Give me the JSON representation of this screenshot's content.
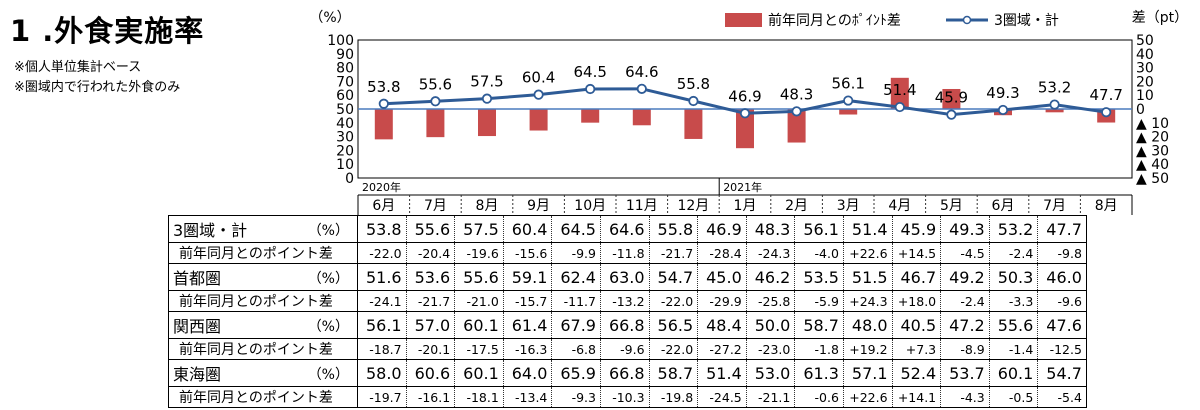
{
  "title": "1 .外食実施率",
  "notes": [
    "※個人単位集計ベース",
    "※圏域内で行われた外食のみ"
  ],
  "chart_data": {
    "type": "bar+line",
    "year_labels": [
      "2020年",
      "2021年"
    ],
    "categories": [
      "6月",
      "7月",
      "8月",
      "9月",
      "10月",
      "11月",
      "12月",
      "1月",
      "2月",
      "3月",
      "4月",
      "5月",
      "6月",
      "7月",
      "8月"
    ],
    "left_axis": {
      "unit": "（%）",
      "ylim": [
        0,
        100
      ],
      "ticks": [
        "0",
        "10",
        "20",
        "30",
        "40",
        "50",
        "60",
        "70",
        "80",
        "90",
        "100"
      ]
    },
    "right_axis": {
      "unit": "差（pt）",
      "ylim": [
        -50,
        50
      ],
      "ticks": [
        "▲ 50",
        "▲ 40",
        "▲ 30",
        "▲ 20",
        "▲ 10",
        "0",
        "10",
        "20",
        "30",
        "40",
        "50"
      ]
    },
    "series": [
      {
        "name": "前年同月とのﾎﾟｲﾝﾄ差",
        "type": "bar",
        "axis": "right",
        "values": [
          -22.0,
          -20.4,
          -19.6,
          -15.6,
          -9.9,
          -11.8,
          -21.7,
          -28.4,
          -24.3,
          -4.0,
          22.6,
          14.5,
          -4.5,
          -2.4,
          -9.8
        ]
      },
      {
        "name": "3圏域・計",
        "type": "line",
        "axis": "left",
        "values": [
          53.8,
          55.6,
          57.5,
          60.4,
          64.5,
          64.6,
          55.8,
          46.9,
          48.3,
          56.1,
          51.4,
          45.9,
          49.3,
          53.2,
          47.7
        ]
      }
    ],
    "colors": {
      "bar": "#c84b4b",
      "line": "#2e5b96",
      "axis_line": "#4a7bbd"
    }
  },
  "table": {
    "rows": [
      {
        "label": "3圏域・計",
        "unit": "（%）",
        "kind": "main",
        "values": [
          "53.8",
          "55.6",
          "57.5",
          "60.4",
          "64.5",
          "64.6",
          "55.8",
          "46.9",
          "48.3",
          "56.1",
          "51.4",
          "45.9",
          "49.3",
          "53.2",
          "47.7"
        ]
      },
      {
        "label": "前年同月とのポイント差",
        "unit": "",
        "kind": "sub",
        "values": [
          "-22.0",
          "-20.4",
          "-19.6",
          "-15.6",
          "-9.9",
          "-11.8",
          "-21.7",
          "-28.4",
          "-24.3",
          "-4.0",
          "+22.6",
          "+14.5",
          "-4.5",
          "-2.4",
          "-9.8"
        ]
      },
      {
        "label": "首都圏",
        "unit": "（%）",
        "kind": "main",
        "values": [
          "51.6",
          "53.6",
          "55.6",
          "59.1",
          "62.4",
          "63.0",
          "54.7",
          "45.0",
          "46.2",
          "53.5",
          "51.5",
          "46.7",
          "49.2",
          "50.3",
          "46.0"
        ]
      },
      {
        "label": "前年同月とのポイント差",
        "unit": "",
        "kind": "sub",
        "values": [
          "-24.1",
          "-21.7",
          "-21.0",
          "-15.7",
          "-11.7",
          "-13.2",
          "-22.0",
          "-29.9",
          "-25.8",
          "-5.9",
          "+24.3",
          "+18.0",
          "-2.4",
          "-3.3",
          "-9.6"
        ]
      },
      {
        "label": "関西圏",
        "unit": "（%）",
        "kind": "main",
        "values": [
          "56.1",
          "57.0",
          "60.1",
          "61.4",
          "67.9",
          "66.8",
          "56.5",
          "48.4",
          "50.0",
          "58.7",
          "48.0",
          "40.5",
          "47.2",
          "55.6",
          "47.6"
        ]
      },
      {
        "label": "前年同月とのポイント差",
        "unit": "",
        "kind": "sub",
        "values": [
          "-18.7",
          "-20.1",
          "-17.5",
          "-16.3",
          "-6.8",
          "-9.6",
          "-22.0",
          "-27.2",
          "-23.0",
          "-1.8",
          "+19.2",
          "+7.3",
          "-8.9",
          "-1.4",
          "-12.5"
        ]
      },
      {
        "label": "東海圏",
        "unit": "（%）",
        "kind": "main",
        "values": [
          "58.0",
          "60.6",
          "60.1",
          "64.0",
          "65.9",
          "66.8",
          "58.7",
          "51.4",
          "53.0",
          "61.3",
          "57.1",
          "52.4",
          "53.7",
          "60.1",
          "54.7"
        ]
      },
      {
        "label": "前年同月とのポイント差",
        "unit": "",
        "kind": "sub",
        "values": [
          "-19.7",
          "-16.1",
          "-18.1",
          "-13.4",
          "-9.3",
          "-10.3",
          "-19.8",
          "-24.5",
          "-21.1",
          "-0.6",
          "+22.6",
          "+14.1",
          "-4.3",
          "-0.5",
          "-5.4"
        ]
      }
    ]
  }
}
